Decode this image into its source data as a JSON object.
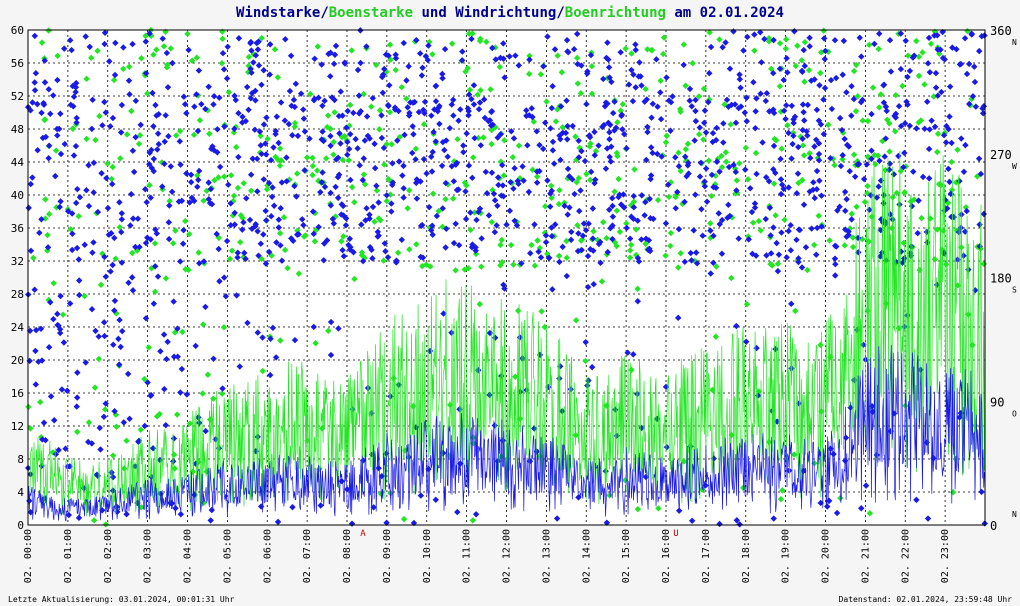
{
  "title": {
    "part1": "Windstarke",
    "sep1": "/",
    "part2": "Boenstarke",
    "part3": " und ",
    "part4": "Windrichtung",
    "sep2": "/",
    "part5": "Boenrichtung",
    "part6": " am 02.01.2024"
  },
  "footer": {
    "left": "Letzte Aktualisierung: 03.01.2024, 00:01:31 Uhr",
    "right": "Datenstand: 02.01.2024, 23:59:48 Uhr"
  },
  "colors": {
    "wind": "#1a1ae6",
    "gust": "#22e622",
    "title": "#00008b",
    "grid": "#000000",
    "marker_red": "#cc0000"
  },
  "chart_data": {
    "type": "line",
    "title": "Windstarke/Boenstarke und Windrichtung/Boenrichtung am 02.01.2024",
    "xlabel": "",
    "ylabel": "",
    "x_ticks": [
      "02. 00:00",
      "02. 01:00",
      "02. 02:00",
      "02. 03:00",
      "02. 04:00",
      "02. 05:00",
      "02. 06:00",
      "02. 07:00",
      "02. 08:00",
      "02. 09:00",
      "02. 10:00",
      "02. 11:00",
      "02. 12:00",
      "02. 13:00",
      "02. 14:00",
      "02. 15:00",
      "02. 16:00",
      "02. 17:00",
      "02. 18:00",
      "02. 19:00",
      "02. 20:00",
      "02. 21:00",
      "02. 22:00",
      "02. 23:00"
    ],
    "xlim_hours": [
      0,
      24
    ],
    "y_left": {
      "ylim": [
        0,
        60
      ],
      "ticks": [
        "0",
        "4",
        "8",
        "12",
        "16",
        "20",
        "24",
        "28",
        "32",
        "36",
        "40",
        "44",
        "48",
        "52",
        "56",
        "60"
      ]
    },
    "y_right": {
      "ylim": [
        0,
        360
      ],
      "ticks": [
        {
          "value": 0,
          "label": "0",
          "dir": "N"
        },
        {
          "value": 90,
          "label": "90",
          "dir": "O"
        },
        {
          "value": 180,
          "label": "180",
          "dir": "S"
        },
        {
          "value": 270,
          "label": "270",
          "dir": "W"
        },
        {
          "value": 360,
          "label": "360",
          "dir": "N"
        }
      ]
    },
    "markers": [
      {
        "hour": 8.4,
        "label": "A"
      },
      {
        "hour": 16.25,
        "label": "U"
      }
    ],
    "series": [
      {
        "name": "Windstarke",
        "color": "#1a1ae6",
        "hours": [
          0,
          0.5,
          1,
          1.5,
          2,
          2.5,
          3,
          3.5,
          4,
          4.5,
          5,
          5.5,
          6,
          6.5,
          7,
          7.5,
          8,
          8.5,
          9,
          9.5,
          10,
          10.5,
          11,
          11.5,
          12,
          12.5,
          13,
          13.5,
          14,
          14.5,
          15,
          15.5,
          16,
          16.5,
          17,
          17.5,
          18,
          18.5,
          19,
          19.5,
          20,
          20.5,
          21,
          21.5,
          22,
          22.5,
          23,
          23.5,
          24
        ],
        "values": [
          3,
          2.5,
          2,
          2,
          2.5,
          3,
          3.5,
          3.5,
          4,
          4.5,
          5,
          5,
          5,
          5.5,
          5.5,
          5,
          5,
          6,
          7,
          7,
          8,
          8.5,
          8.5,
          8,
          8,
          7.5,
          7,
          6,
          5,
          5,
          6,
          5.5,
          5,
          6,
          6,
          7,
          7,
          7,
          7,
          6.5,
          7,
          9,
          13,
          14,
          14,
          13,
          13,
          12,
          11
        ]
      },
      {
        "name": "Boenstarke",
        "color": "#22e622",
        "hours": [
          0,
          0.5,
          1,
          1.5,
          2,
          2.5,
          3,
          3.5,
          4,
          4.5,
          5,
          5.5,
          6,
          6.5,
          7,
          7.5,
          8,
          8.5,
          9,
          9.5,
          10,
          10.5,
          11,
          11.5,
          12,
          12.5,
          13,
          13.5,
          14,
          14.5,
          15,
          15.5,
          16,
          16.5,
          17,
          17.5,
          18,
          18.5,
          19,
          19.5,
          20,
          20.5,
          21,
          21.5,
          22,
          22.5,
          23,
          23.5,
          24
        ],
        "values": [
          7,
          6.5,
          5,
          4.5,
          5,
          6,
          7,
          7,
          8,
          9.5,
          11,
          11,
          11,
          12,
          12,
          11,
          11,
          13,
          15,
          16,
          17,
          18,
          18,
          17,
          17,
          16,
          15,
          13,
          11,
          11,
          13,
          12,
          11,
          13,
          13,
          15,
          15,
          15,
          15,
          14,
          15,
          19,
          26,
          28,
          28,
          27,
          27,
          25,
          23
        ]
      }
    ],
    "direction_note": "Wind and gust directions plotted as scatter markers against right axis (degrees)"
  }
}
